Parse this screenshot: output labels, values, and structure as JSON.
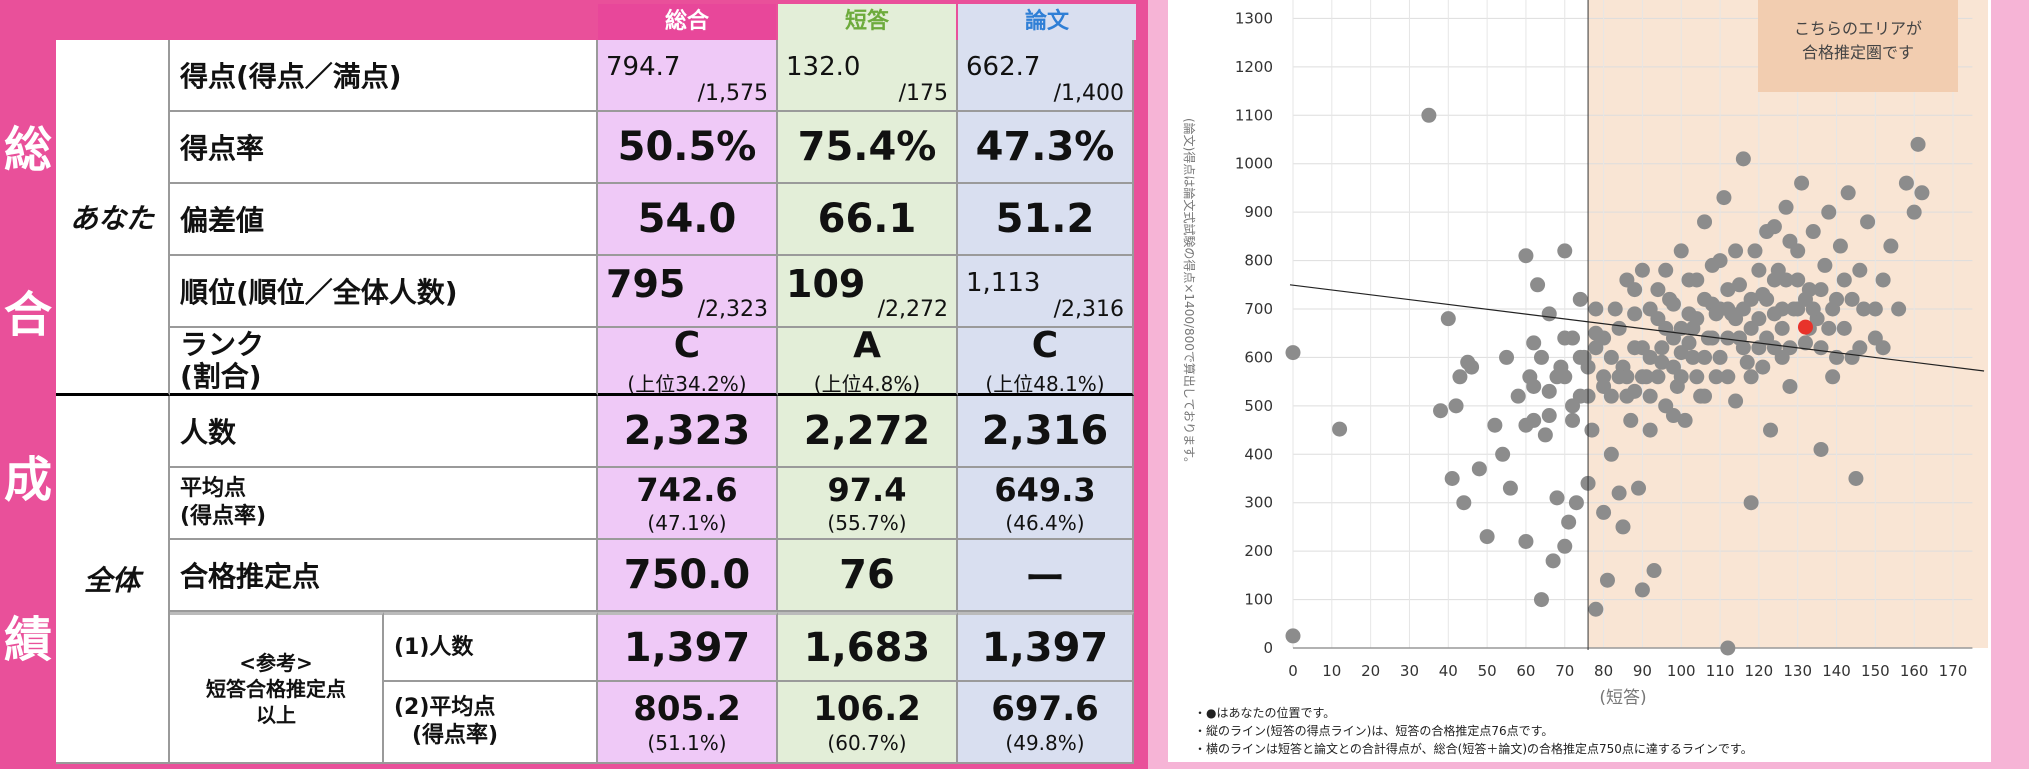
{
  "side_title": [
    "総",
    "合",
    "成",
    "績"
  ],
  "headers": {
    "sogo": "総合",
    "tan": "短答",
    "ron": "論文"
  },
  "header_colors": {
    "sogo": "#e8479a",
    "tan": "#6dab3c",
    "ron": "#2f7fd6"
  },
  "groups": {
    "anata": "あなた",
    "zentai": "全体"
  },
  "rows": {
    "score": {
      "label": "得点(得点／満点)",
      "sogo": [
        "794.7",
        "/1,575"
      ],
      "tan": [
        "132.0",
        "/175"
      ],
      "ron": [
        "662.7",
        "/1,400"
      ]
    },
    "rate": {
      "label": "得点率",
      "sogo": "50.5%",
      "tan": "75.4%",
      "ron": "47.3%"
    },
    "hensa": {
      "label": "偏差値",
      "sogo": "54.0",
      "tan": "66.1",
      "ron": "51.2"
    },
    "rank_pos": {
      "label": "順位(順位／全体人数)",
      "sogo": [
        "795",
        "/2,323"
      ],
      "tan": [
        "109",
        "/2,272"
      ],
      "ron": [
        "1,113",
        "/2,316"
      ]
    },
    "rank": {
      "label1": "ランク",
      "label2": "(割合)",
      "sogo": [
        "C",
        "(上位34.2%)"
      ],
      "tan": [
        "A",
        "(上位4.8%)"
      ],
      "ron": [
        "C",
        "(上位48.1%)"
      ]
    },
    "ninzu": {
      "label": "人数",
      "sogo": "2,323",
      "tan": "2,272",
      "ron": "2,316"
    },
    "avg": {
      "label1": "平均点",
      "label2": "(得点率)",
      "sogo": [
        "742.6",
        "(47.1%)"
      ],
      "tan": [
        "97.4",
        "(55.7%)"
      ],
      "ron": [
        "649.3",
        "(46.4%)"
      ]
    },
    "pass": {
      "label": "合格推定点",
      "sogo": "750.0",
      "tan": "76",
      "ron": "ー"
    },
    "ref": {
      "title1": "<参考>",
      "title2": "短答合格推定点",
      "title3": "以上",
      "sub1": "(1)人数",
      "sub2a": "(2)平均点",
      "sub2b": "(得点率)",
      "n_sogo": "1,397",
      "n_tan": "1,683",
      "n_ron": "1,397",
      "a_sogo": [
        "805.2",
        "(51.1%)"
      ],
      "a_tan": [
        "106.2",
        "(60.7%)"
      ],
      "a_ron": [
        "697.6",
        "(49.8%)"
      ]
    }
  },
  "chart_data": {
    "type": "scatter",
    "xlabel": "(短答)",
    "ylabel": "(論文)得点は論文式試験の得点×1400/800で算出しております。",
    "x_ticks": [
      0,
      10,
      20,
      30,
      40,
      50,
      60,
      70,
      80,
      90,
      100,
      110,
      120,
      130,
      140,
      150,
      160,
      170
    ],
    "y_ticks": [
      0,
      100,
      200,
      300,
      400,
      500,
      600,
      700,
      800,
      900,
      1000,
      1100,
      1200,
      1300,
      1400
    ],
    "xlim": [
      0,
      170
    ],
    "ylim": [
      0,
      1400
    ],
    "vertical_line_x": 76,
    "diagonal_line": {
      "x1": 0,
      "y1": 750,
      "x2": 178,
      "y2": 572
    },
    "pass_zone_label": [
      "こちらのエリアが",
      "合格推定圏です"
    ],
    "pass_zone_color": "#f7dcc6",
    "point_color": "#8c8c8c",
    "you_color": "#e8332b",
    "you": {
      "x": 132.0,
      "y": 662.7
    },
    "points": [
      [
        0,
        610
      ],
      [
        0,
        25
      ],
      [
        12,
        452
      ],
      [
        35,
        1100
      ],
      [
        38,
        490
      ],
      [
        40,
        680
      ],
      [
        41,
        350
      ],
      [
        42,
        500
      ],
      [
        43,
        560
      ],
      [
        44,
        300
      ],
      [
        45,
        590
      ],
      [
        46,
        580
      ],
      [
        48,
        370
      ],
      [
        50,
        230
      ],
      [
        52,
        460
      ],
      [
        54,
        400
      ],
      [
        55,
        600
      ],
      [
        56,
        330
      ],
      [
        58,
        520
      ],
      [
        60,
        220
      ],
      [
        60,
        810
      ],
      [
        61,
        560
      ],
      [
        62,
        470
      ],
      [
        62,
        630
      ],
      [
        63,
        750
      ],
      [
        64,
        100
      ],
      [
        65,
        440
      ],
      [
        66,
        530
      ],
      [
        66,
        690
      ],
      [
        67,
        180
      ],
      [
        68,
        310
      ],
      [
        69,
        580
      ],
      [
        70,
        210
      ],
      [
        70,
        820
      ],
      [
        71,
        260
      ],
      [
        72,
        500
      ],
      [
        73,
        300
      ],
      [
        74,
        720
      ],
      [
        75,
        600
      ],
      [
        76,
        340
      ],
      [
        77,
        450
      ],
      [
        78,
        80
      ],
      [
        78,
        650
      ],
      [
        80,
        280
      ],
      [
        80,
        560
      ],
      [
        81,
        140
      ],
      [
        82,
        400
      ],
      [
        83,
        700
      ],
      [
        84,
        320
      ],
      [
        85,
        250
      ],
      [
        86,
        520
      ],
      [
        87,
        470
      ],
      [
        88,
        620
      ],
      [
        89,
        330
      ],
      [
        90,
        120
      ],
      [
        90,
        780
      ],
      [
        91,
        560
      ],
      [
        92,
        450
      ],
      [
        93,
        160
      ],
      [
        94,
        680
      ],
      [
        95,
        590
      ],
      [
        96,
        500
      ],
      [
        97,
        720
      ],
      [
        98,
        640
      ],
      [
        99,
        540
      ],
      [
        100,
        820
      ],
      [
        101,
        470
      ],
      [
        102,
        690
      ],
      [
        103,
        600
      ],
      [
        104,
        760
      ],
      [
        105,
        520
      ],
      [
        106,
        880
      ],
      [
        107,
        640
      ],
      [
        108,
        710
      ],
      [
        109,
        560
      ],
      [
        110,
        800
      ],
      [
        111,
        930
      ],
      [
        112,
        0
      ],
      [
        112,
        640
      ],
      [
        113,
        690
      ],
      [
        114,
        510
      ],
      [
        115,
        750
      ],
      [
        116,
        1010
      ],
      [
        117,
        590
      ],
      [
        118,
        300
      ],
      [
        119,
        820
      ],
      [
        120,
        680
      ],
      [
        121,
        730
      ],
      [
        122,
        640
      ],
      [
        123,
        450
      ],
      [
        124,
        870
      ],
      [
        125,
        780
      ],
      [
        126,
        600
      ],
      [
        127,
        910
      ],
      [
        128,
        540
      ],
      [
        129,
        700
      ],
      [
        130,
        820
      ],
      [
        131,
        960
      ],
      [
        132,
        630
      ],
      [
        133,
        740
      ],
      [
        134,
        860
      ],
      [
        135,
        680
      ],
      [
        136,
        410
      ],
      [
        137,
        790
      ],
      [
        138,
        900
      ],
      [
        139,
        560
      ],
      [
        140,
        720
      ],
      [
        141,
        830
      ],
      [
        142,
        660
      ],
      [
        143,
        940
      ],
      [
        144,
        600
      ],
      [
        145,
        350
      ],
      [
        146,
        780
      ],
      [
        147,
        700
      ],
      [
        148,
        880
      ],
      [
        150,
        640
      ],
      [
        152,
        760
      ],
      [
        154,
        830
      ],
      [
        156,
        700
      ],
      [
        158,
        960
      ],
      [
        160,
        900
      ],
      [
        161,
        1040
      ],
      [
        162,
        940
      ],
      [
        85,
        580
      ],
      [
        88,
        530
      ],
      [
        92,
        600
      ],
      [
        95,
        620
      ],
      [
        98,
        580
      ],
      [
        100,
        610
      ],
      [
        103,
        660
      ],
      [
        106,
        600
      ],
      [
        109,
        690
      ],
      [
        112,
        700
      ],
      [
        115,
        640
      ],
      [
        118,
        720
      ],
      [
        121,
        580
      ],
      [
        124,
        690
      ],
      [
        127,
        760
      ],
      [
        130,
        700
      ],
      [
        133,
        660
      ],
      [
        136,
        740
      ],
      [
        139,
        700
      ],
      [
        142,
        760
      ],
      [
        70,
        560
      ],
      [
        72,
        640
      ],
      [
        74,
        520
      ],
      [
        76,
        580
      ],
      [
        78,
        620
      ],
      [
        80,
        540
      ],
      [
        82,
        600
      ],
      [
        84,
        660
      ],
      [
        86,
        560
      ],
      [
        88,
        690
      ],
      [
        90,
        620
      ],
      [
        92,
        700
      ],
      [
        94,
        560
      ],
      [
        96,
        660
      ],
      [
        98,
        710
      ],
      [
        100,
        560
      ],
      [
        102,
        630
      ],
      [
        104,
        680
      ],
      [
        106,
        720
      ],
      [
        108,
        640
      ],
      [
        110,
        600
      ],
      [
        112,
        740
      ],
      [
        114,
        680
      ],
      [
        116,
        620
      ],
      [
        118,
        660
      ],
      [
        120,
        780
      ],
      [
        122,
        720
      ],
      [
        124,
        620
      ],
      [
        126,
        660
      ],
      [
        128,
        620
      ],
      [
        60,
        460
      ],
      [
        62,
        540
      ],
      [
        64,
        600
      ],
      [
        66,
        480
      ],
      [
        68,
        560
      ],
      [
        70,
        640
      ],
      [
        72,
        470
      ],
      [
        74,
        600
      ],
      [
        76,
        520
      ],
      [
        78,
        700
      ],
      [
        80,
        640
      ],
      [
        82,
        520
      ],
      [
        84,
        560
      ],
      [
        86,
        760
      ],
      [
        88,
        740
      ],
      [
        90,
        560
      ],
      [
        92,
        520
      ],
      [
        94,
        740
      ],
      [
        96,
        780
      ],
      [
        98,
        480
      ],
      [
        100,
        660
      ],
      [
        102,
        760
      ],
      [
        104,
        560
      ],
      [
        106,
        520
      ],
      [
        108,
        790
      ],
      [
        110,
        700
      ],
      [
        112,
        560
      ],
      [
        114,
        820
      ],
      [
        116,
        700
      ],
      [
        118,
        560
      ],
      [
        120,
        620
      ],
      [
        122,
        860
      ],
      [
        124,
        760
      ],
      [
        126,
        700
      ],
      [
        128,
        840
      ],
      [
        130,
        760
      ],
      [
        132,
        720
      ],
      [
        134,
        700
      ],
      [
        136,
        620
      ],
      [
        138,
        660
      ],
      [
        140,
        600
      ],
      [
        144,
        720
      ],
      [
        146,
        620
      ],
      [
        150,
        700
      ],
      [
        152,
        620
      ]
    ]
  },
  "notes": [
    "・●はあなたの位置です。",
    "・縦のライン(短答の得点ライン)は、短答の合格推定点76点です。",
    "・横のラインは短答と論文との合計得点が、総合(短答＋論文)の合格推定点750点に達するラインです。"
  ]
}
